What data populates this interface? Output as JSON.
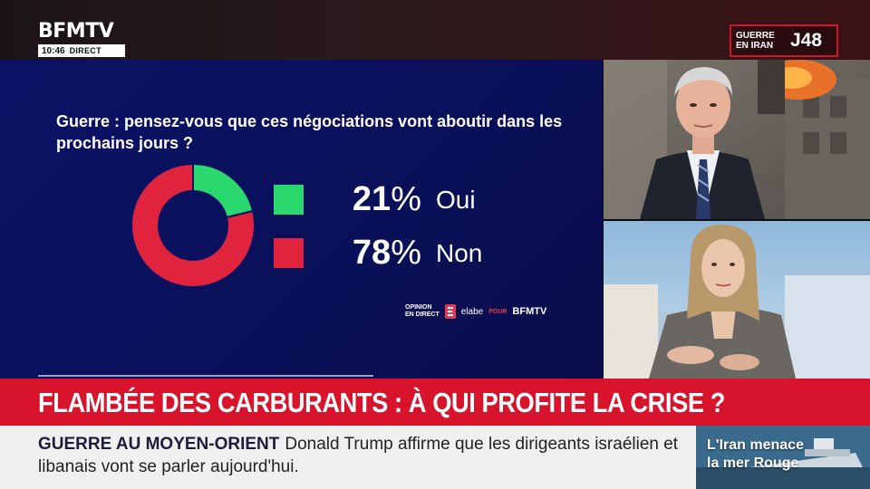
{
  "channel": {
    "logo": "BFMTV",
    "clock": "10:46",
    "live_label": "DIRECT"
  },
  "badge": {
    "text_line1": "GUERRE",
    "text_line2": "EN IRAN",
    "day": "J48",
    "border_color": "#d0142a"
  },
  "poll": {
    "question": "Guerre : pensez-vous que ces négociations vont aboutir dans les prochains jours ?",
    "results": [
      {
        "value": 21,
        "percent_sign": "%",
        "label": "Oui",
        "color": "#2bd86e"
      },
      {
        "value": 78,
        "percent_sign": "%",
        "label": "Non",
        "color": "#e0243e"
      }
    ],
    "credits": {
      "opinion_line1": "OPINION",
      "opinion_line2": "EN DIRECT",
      "elabe": "elabe",
      "pour": "POUR",
      "bfmtv": "BFMTV"
    }
  },
  "headline": "FLAMBÉE DES CARBURANTS : À QUI PROFITE LA CRISE ?",
  "ticker": {
    "label": "GUERRE AU MOYEN-ORIENT",
    "text": "Donald Trump affirme que les dirigeants israélien et libanais vont se parler aujourd'hui."
  },
  "promo": {
    "line1": "L'Iran menace",
    "line2": "la mer Rouge"
  },
  "colors": {
    "headline_bg": "#d8142c",
    "poll_bg": "#0b1264",
    "ticker_bg": "#f0f0f0"
  }
}
